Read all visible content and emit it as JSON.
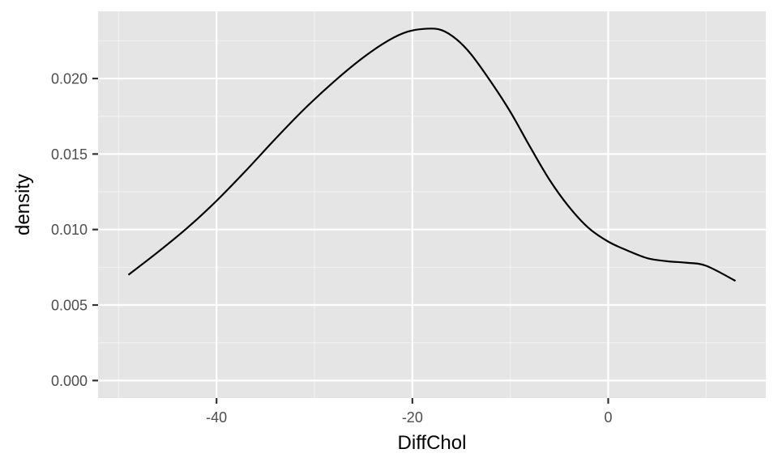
{
  "chart_data": {
    "type": "line",
    "xlabel": "DiffChol",
    "ylabel": "density",
    "xlim": [
      -52.1,
      16.1
    ],
    "ylim": [
      -0.00116,
      0.02445
    ],
    "x_ticks": [
      -40,
      -20,
      0
    ],
    "x_tick_labels": [
      "-40",
      "-20",
      "0"
    ],
    "x_minor_ticks": [
      -50,
      -30,
      -10,
      10
    ],
    "y_ticks": [
      0,
      0.005,
      0.01,
      0.015,
      0.02
    ],
    "y_tick_labels": [
      "0.000",
      "0.005",
      "0.010",
      "0.015",
      "0.020"
    ],
    "y_minor_ticks": [
      0.0025,
      0.0075,
      0.0125,
      0.0175,
      0.0225
    ],
    "grid": true,
    "series": [
      {
        "x": [
          -49.0,
          -46.0,
          -43.0,
          -40.0,
          -37.0,
          -34.0,
          -31.0,
          -28.0,
          -25.0,
          -22.5,
          -20.5,
          -18.5,
          -17.0,
          -15.5,
          -14.0,
          -12.0,
          -10.0,
          -8.0,
          -6.0,
          -4.0,
          -2.0,
          0.0,
          2.0,
          4.0,
          6.0,
          8.0,
          10.0,
          13.0
        ],
        "y": [
          0.007,
          0.0085,
          0.0101,
          0.0119,
          0.0139,
          0.016,
          0.018,
          0.0198,
          0.0214,
          0.0225,
          0.0231,
          0.0233,
          0.0232,
          0.0226,
          0.0216,
          0.0198,
          0.0178,
          0.0155,
          0.0133,
          0.0115,
          0.0101,
          0.0092,
          0.0086,
          0.0081,
          0.0079,
          0.0078,
          0.0076,
          0.0066
        ]
      }
    ]
  }
}
